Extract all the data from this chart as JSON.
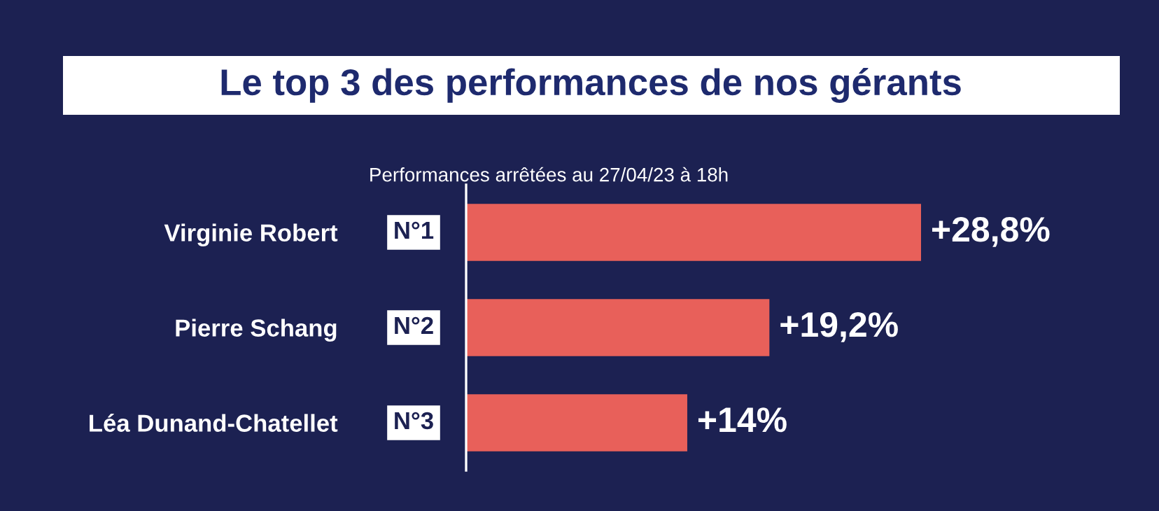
{
  "chart_data": {
    "type": "bar",
    "orientation": "horizontal",
    "title": "Le top 3 des performances de nos gérants",
    "subtitle": "Performances arrêtées au 27/04/23 à 18h",
    "categories": [
      "Virginie Robert",
      "Pierre Schang",
      "Léa Dunand-Chatellet"
    ],
    "values": [
      28.8,
      19.2,
      14
    ],
    "value_labels": [
      "+28,8%",
      "+19,2%",
      "+14%"
    ],
    "color": "#e8605a",
    "annotations": [
      "N°1",
      "N°2",
      "N°3"
    ]
  }
}
